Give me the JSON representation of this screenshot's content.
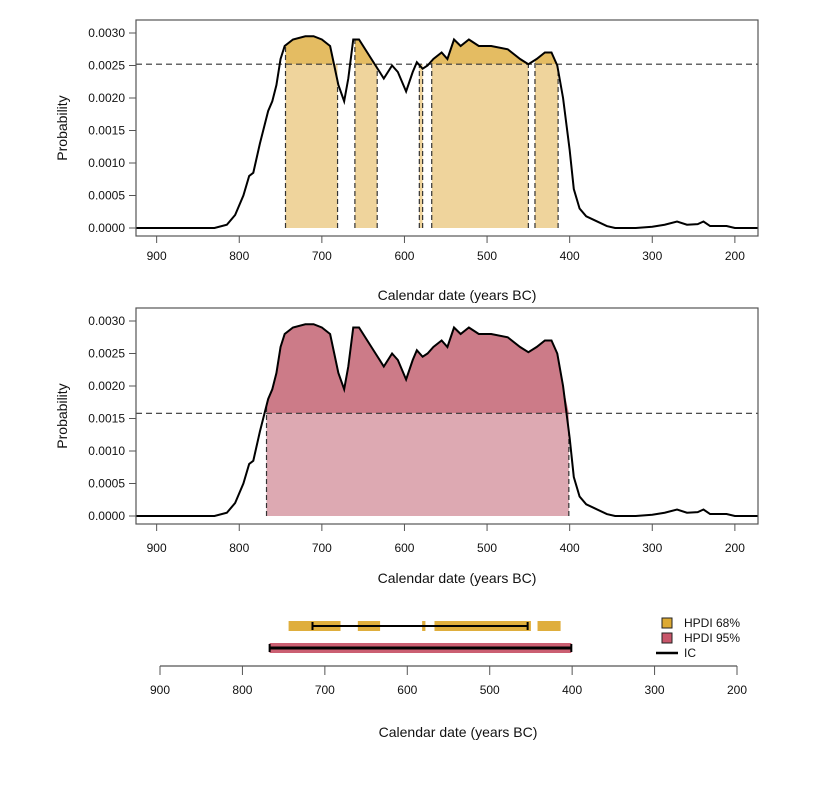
{
  "chart_data": [
    {
      "type": "area",
      "xlabel": "Calendar date (years BC)",
      "ylabel": "Probability",
      "xlim": [
        925,
        172
      ],
      "ylim": [
        0,
        0.003
      ],
      "x_reversed": true,
      "xticks": [
        "900",
        "800",
        "700",
        "600",
        "500",
        "400",
        "300",
        "200"
      ],
      "yticks": [
        "0.0000",
        "0.0005",
        "0.0010",
        "0.0015",
        "0.0020",
        "0.0025",
        "0.0030"
      ],
      "threshold": 0.00252,
      "hpdi_intervals": [
        [
          744,
          681
        ],
        [
          660,
          633
        ],
        [
          582,
          578
        ],
        [
          567,
          450
        ],
        [
          442,
          414
        ]
      ],
      "fill_color_light": "#EFD49C",
      "fill_color_dark": "#E4BC62",
      "grid": false
    },
    {
      "type": "area",
      "xlabel": "Calendar date (years BC)",
      "ylabel": "Probability",
      "xlim": [
        925,
        172
      ],
      "ylim": [
        0,
        0.003
      ],
      "x_reversed": true,
      "xticks": [
        "900",
        "800",
        "700",
        "600",
        "500",
        "400",
        "300",
        "200"
      ],
      "yticks": [
        "0.0000",
        "0.0005",
        "0.0010",
        "0.0015",
        "0.0020",
        "0.0025",
        "0.0030"
      ],
      "threshold": 0.00158,
      "hpdi_intervals": [
        [
          767,
          401
        ]
      ],
      "fill_color_light": "#DDA9B2",
      "fill_color_dark": "#CC7B88",
      "grid": false
    },
    {
      "type": "interval",
      "xlabel": "Calendar date (years BC)",
      "xlim": [
        925,
        172
      ],
      "xticks": [
        "900",
        "800",
        "700",
        "600",
        "500",
        "400",
        "300",
        "200"
      ],
      "legend_position": "right",
      "series": [
        {
          "name": "HPDI 68%",
          "color": "#DDAA33",
          "intervals": [
            [
              744,
              681
            ],
            [
              660,
              633
            ],
            [
              582,
              578
            ],
            [
              567,
              450
            ],
            [
              442,
              414
            ]
          ],
          "ic": [
            715,
            454
          ]
        },
        {
          "name": "HPDI 95%",
          "color": "#C8566A",
          "intervals": [
            [
              767,
              401
            ]
          ],
          "ic": [
            767,
            401
          ]
        }
      ],
      "ic_label": "IC"
    }
  ],
  "density_curve": {
    "x": [
      925,
      830,
      815,
      805,
      795,
      788,
      783,
      775,
      765,
      760,
      755,
      750,
      745,
      735,
      720,
      710,
      700,
      690,
      685,
      680,
      673,
      668,
      662,
      655,
      645,
      635,
      625,
      615,
      608,
      598,
      590,
      585,
      578,
      572,
      565,
      555,
      548,
      540,
      532,
      522,
      510,
      495,
      475,
      460,
      450,
      440,
      430,
      422,
      415,
      408,
      400,
      395,
      388,
      380,
      370,
      355,
      345,
      320,
      300,
      285,
      270,
      258,
      245,
      238,
      230,
      210,
      200,
      172
    ],
    "y": [
      0,
      0,
      5e-05,
      0.0002,
      0.0005,
      0.0008,
      0.00085,
      0.0013,
      0.0018,
      0.00195,
      0.0022,
      0.0026,
      0.0028,
      0.0029,
      0.00295,
      0.00295,
      0.0029,
      0.0028,
      0.0025,
      0.0022,
      0.00195,
      0.0023,
      0.0029,
      0.0029,
      0.0027,
      0.0025,
      0.0023,
      0.0025,
      0.0024,
      0.0021,
      0.0024,
      0.00255,
      0.00245,
      0.0025,
      0.0026,
      0.0027,
      0.0026,
      0.0029,
      0.0028,
      0.0029,
      0.0028,
      0.0028,
      0.00275,
      0.0026,
      0.00252,
      0.0026,
      0.0027,
      0.0027,
      0.0025,
      0.002,
      0.0012,
      0.0006,
      0.0003,
      0.00018,
      0.00012,
      3e-05,
      0,
      0,
      2e-05,
      5e-05,
      0.0001,
      5e-05,
      6e-05,
      0.0001,
      3e-05,
      3e-05,
      0,
      0
    ]
  }
}
